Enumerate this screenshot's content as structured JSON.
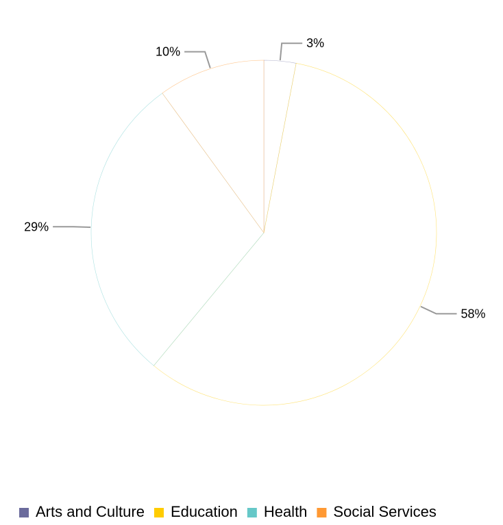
{
  "chart_data": {
    "type": "pie",
    "categories": [
      "Arts and Culture",
      "Education",
      "Health",
      "Social Services"
    ],
    "values": [
      3,
      58,
      29,
      10
    ],
    "value_labels": [
      "3%",
      "58%",
      "29%",
      "10%"
    ],
    "slice_order": [
      "Arts and Culture",
      "Education",
      "Health",
      "Social Services"
    ],
    "start_angle_deg": 0,
    "direction": "clockwise",
    "legend_position": "bottom",
    "legend": [
      {
        "name": "Arts and Culture",
        "color": "#6b6b9c"
      },
      {
        "name": "Education",
        "color": "#ffcc00"
      },
      {
        "name": "Health",
        "color": "#66c8c8"
      },
      {
        "name": "Social Services",
        "color": "#ff9933"
      }
    ]
  }
}
